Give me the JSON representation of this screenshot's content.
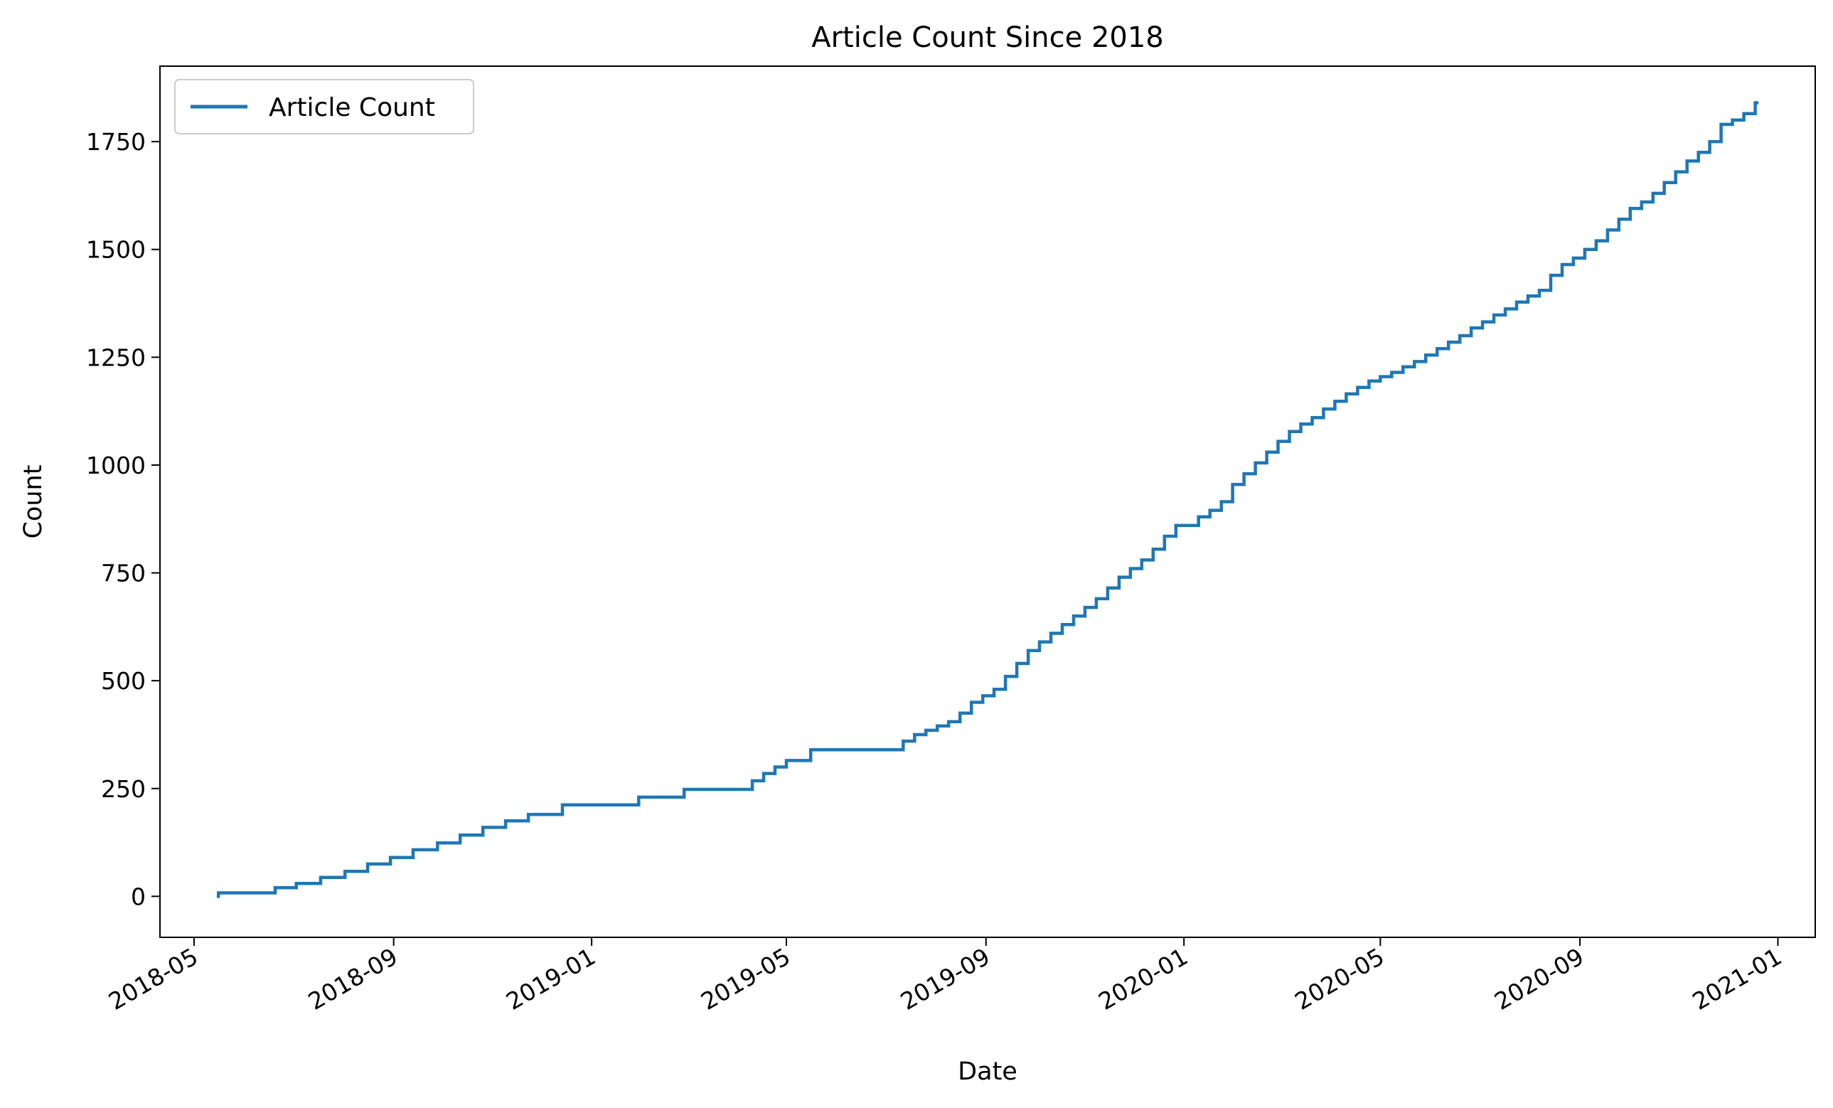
{
  "chart_data": {
    "type": "line",
    "title": "Article Count Since 2018",
    "xlabel": "Date",
    "ylabel": "Count",
    "x_tick_labels": [
      "2018-05",
      "2018-09",
      "2019-01",
      "2019-05",
      "2019-09",
      "2020-01",
      "2020-05",
      "2020-09",
      "2021-01"
    ],
    "x_ticks": [
      "2018-05-01",
      "2018-09-01",
      "2019-01-01",
      "2019-05-01",
      "2019-09-01",
      "2020-01-01",
      "2020-05-01",
      "2020-09-01",
      "2021-01-01"
    ],
    "y_ticks": [
      0,
      250,
      500,
      750,
      1000,
      1250,
      1500,
      1750
    ],
    "y_tick_labels": [
      "0",
      "250",
      "500",
      "750",
      "1000",
      "1250",
      "1500",
      "1750"
    ],
    "xlim": [
      "2018-04-10",
      "2021-01-24"
    ],
    "ylim": [
      -95,
      1925
    ],
    "grid": false,
    "legend_position": "top-left",
    "step": "post",
    "color": "#1f77b4",
    "series": [
      {
        "name": "Article Count",
        "x": [
          "2018-05-15",
          "2018-05-16",
          "2018-06-20",
          "2018-07-03",
          "2018-07-18",
          "2018-08-02",
          "2018-08-16",
          "2018-08-30",
          "2018-09-13",
          "2018-09-28",
          "2018-10-12",
          "2018-10-26",
          "2018-11-09",
          "2018-11-23",
          "2018-12-14",
          "2019-01-30",
          "2019-02-27",
          "2019-04-10",
          "2019-04-17",
          "2019-04-24",
          "2019-05-01",
          "2019-05-16",
          "2019-07-12",
          "2019-07-19",
          "2019-07-26",
          "2019-08-02",
          "2019-08-09",
          "2019-08-16",
          "2019-08-23",
          "2019-08-30",
          "2019-09-06",
          "2019-09-13",
          "2019-09-20",
          "2019-09-27",
          "2019-10-04",
          "2019-10-11",
          "2019-10-18",
          "2019-10-25",
          "2019-11-01",
          "2019-11-08",
          "2019-11-15",
          "2019-11-22",
          "2019-11-29",
          "2019-12-06",
          "2019-12-13",
          "2019-12-20",
          "2019-12-27",
          "2020-01-03",
          "2020-01-10",
          "2020-01-17",
          "2020-01-24",
          "2020-01-31",
          "2020-02-07",
          "2020-02-14",
          "2020-02-21",
          "2020-02-28",
          "2020-03-06",
          "2020-03-13",
          "2020-03-20",
          "2020-03-27",
          "2020-04-03",
          "2020-04-10",
          "2020-04-17",
          "2020-04-24",
          "2020-05-01",
          "2020-05-08",
          "2020-05-15",
          "2020-05-22",
          "2020-05-29",
          "2020-06-05",
          "2020-06-12",
          "2020-06-19",
          "2020-06-26",
          "2020-07-03",
          "2020-07-10",
          "2020-07-17",
          "2020-07-24",
          "2020-07-31",
          "2020-08-07",
          "2020-08-14",
          "2020-08-21",
          "2020-08-28",
          "2020-09-04",
          "2020-09-11",
          "2020-09-18",
          "2020-09-25",
          "2020-10-02",
          "2020-10-09",
          "2020-10-16",
          "2020-10-23",
          "2020-10-30",
          "2020-11-06",
          "2020-11-13",
          "2020-11-20",
          "2020-11-27",
          "2020-12-04",
          "2020-12-11",
          "2020-12-18",
          "2020-12-20"
        ],
        "values": [
          0,
          8,
          20,
          30,
          44,
          58,
          75,
          90,
          108,
          124,
          142,
          160,
          175,
          190,
          212,
          230,
          248,
          268,
          285,
          300,
          315,
          340,
          360,
          375,
          385,
          395,
          405,
          425,
          450,
          465,
          480,
          510,
          540,
          570,
          590,
          610,
          630,
          650,
          670,
          690,
          715,
          740,
          760,
          780,
          805,
          835,
          860,
          860,
          880,
          895,
          915,
          955,
          980,
          1005,
          1030,
          1055,
          1078,
          1095,
          1110,
          1130,
          1148,
          1165,
          1180,
          1195,
          1205,
          1215,
          1228,
          1240,
          1255,
          1270,
          1285,
          1300,
          1318,
          1332,
          1348,
          1362,
          1378,
          1392,
          1405,
          1440,
          1465,
          1480,
          1500,
          1520,
          1545,
          1570,
          1595,
          1610,
          1630,
          1655,
          1680,
          1705,
          1725,
          1750,
          1790,
          1800,
          1815,
          1840,
          1840
        ]
      }
    ]
  }
}
